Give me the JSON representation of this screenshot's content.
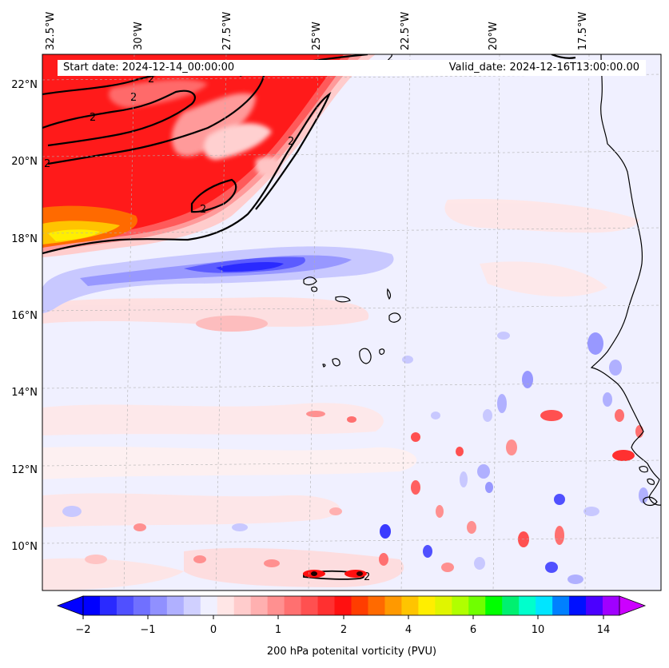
{
  "header": {
    "start_date": "Start date: 2024-12-14_00:00:00",
    "valid_date": "Valid_date: 2024-12-16T13:00:00.00"
  },
  "map": {
    "lon_labels": [
      "32.5°W",
      "30°W",
      "27.5°W",
      "25°W",
      "22.5°W",
      "20°W",
      "17.5°W"
    ],
    "lat_labels": [
      "22°N",
      "20°N",
      "18°N",
      "16°N",
      "14°N",
      "12°N",
      "10°N"
    ],
    "contour_level_label": "2",
    "background_color": "#f0f0ff",
    "colors": {
      "strong_pv": "#ff1a1a",
      "very_strong_pv": "#ffe600",
      "negative_pv": "#3340ff",
      "coastline": "#000000"
    }
  },
  "colorbar": {
    "tick_labels": [
      "−2",
      "−1",
      "0",
      "1",
      "2",
      "4",
      "6",
      "10",
      "14"
    ],
    "title": "200 hPa potenital vorticity (PVU)",
    "colors": [
      "#0000ff",
      "#2a2aff",
      "#5050ff",
      "#7070ff",
      "#9090ff",
      "#b0b0ff",
      "#d0d0ff",
      "#f0f0ff",
      "#ffe6e6",
      "#ffcccc",
      "#ffb0b0",
      "#ff9090",
      "#ff7070",
      "#ff5050",
      "#ff3030",
      "#ff1010",
      "#ff3d00",
      "#ff6a00",
      "#ff9900",
      "#ffc400",
      "#ffee00",
      "#e0f500",
      "#b0ff00",
      "#70ff00",
      "#00ff00",
      "#00f070",
      "#00ffcc",
      "#00e5ff",
      "#0080ff",
      "#0010ff",
      "#4b00ff",
      "#a000ff"
    ],
    "min_color": "#0000ff",
    "max_color": "#cc00ff"
  }
}
